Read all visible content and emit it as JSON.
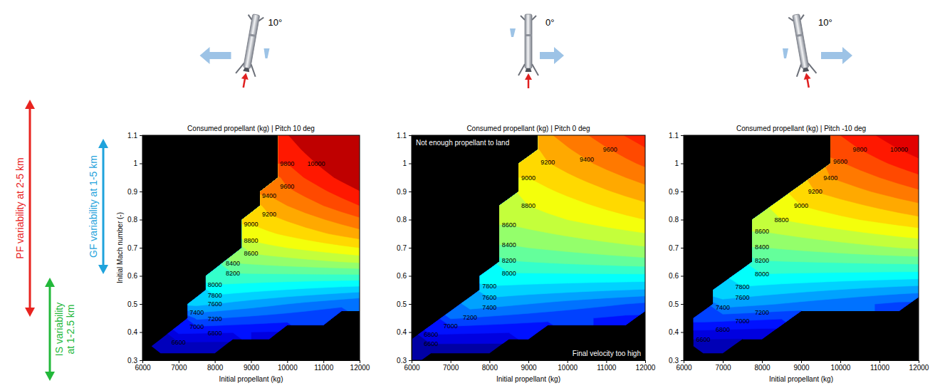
{
  "chart_data": [
    {
      "type": "contour",
      "title": "Consumed propellant (kg) | Pitch 10 deg",
      "icon_text": "10°",
      "x_label": "Initial propellant (kg)",
      "y_label": "Initial Mach number (-)",
      "xlim": [
        6000,
        12000
      ],
      "ylim": [
        0.3,
        1.1
      ],
      "xticks": [
        6000,
        7000,
        8000,
        9000,
        10000,
        11000,
        12000
      ],
      "yticks": [
        0.3,
        0.4,
        0.5,
        0.6,
        0.7,
        0.8,
        0.9,
        1,
        1.1
      ],
      "x": [
        6000,
        6500,
        7000,
        7500,
        8000,
        8500,
        9000,
        9500,
        10000,
        10500,
        11000,
        11500,
        12000
      ],
      "y": [
        0.3,
        0.35,
        0.4,
        0.45,
        0.5,
        0.55,
        0.6,
        0.65,
        0.7,
        0.75,
        0.8,
        0.85,
        0.9,
        0.95,
        1,
        1.05,
        1.1
      ],
      "z": [
        [
          null,
          null,
          null,
          null,
          null,
          null,
          null,
          null,
          null,
          null,
          null,
          null,
          null
        ],
        [
          null,
          6500,
          6500,
          6500,
          6500,
          null,
          null,
          null,
          null,
          null,
          null,
          null,
          null
        ],
        [
          null,
          null,
          6840,
          6830,
          6820,
          6810,
          6800,
          6790,
          null,
          null,
          null,
          null,
          null
        ],
        [
          null,
          null,
          null,
          7240,
          7210,
          7180,
          7150,
          7120,
          7090,
          7060,
          7030,
          null,
          null
        ],
        [
          null,
          null,
          null,
          7650,
          7600,
          7550,
          7500,
          7450,
          7400,
          7350,
          7300,
          7250,
          7200
        ],
        [
          null,
          null,
          null,
          null,
          7910,
          7880,
          7850,
          7820,
          7790,
          7760,
          7730,
          7700,
          7670
        ],
        [
          null,
          null,
          null,
          null,
          8150,
          8150,
          8150,
          8150,
          8150,
          8150,
          8150,
          8150,
          8150
        ],
        [
          null,
          null,
          null,
          null,
          null,
          8420,
          8450,
          8480,
          8510,
          8540,
          8570,
          8600,
          8630
        ],
        [
          null,
          null,
          null,
          null,
          null,
          null,
          8700,
          8750,
          8800,
          8850,
          8900,
          8950,
          9000
        ],
        [
          null,
          null,
          null,
          null,
          null,
          null,
          8900,
          8970,
          9040,
          9110,
          9180,
          9250,
          9320
        ],
        [
          null,
          null,
          null,
          null,
          null,
          null,
          9050,
          9135,
          9220,
          9305,
          9390,
          9475,
          9560
        ],
        [
          null,
          null,
          null,
          null,
          null,
          null,
          null,
          9300,
          9400,
          9500,
          9600,
          9700,
          9800
        ],
        [
          null,
          null,
          null,
          null,
          null,
          null,
          null,
          9440,
          9550,
          9660,
          9770,
          9880,
          9990
        ],
        [
          null,
          null,
          null,
          null,
          null,
          null,
          null,
          null,
          9690,
          9810,
          9930,
          10050,
          10170
        ],
        [
          null,
          null,
          null,
          null,
          null,
          null,
          null,
          null,
          9800,
          9925,
          10050,
          10175,
          10300
        ],
        [
          null,
          null,
          null,
          null,
          null,
          null,
          null,
          null,
          9900,
          10030,
          10160,
          10290,
          10420
        ],
        [
          null,
          null,
          null,
          null,
          null,
          null,
          null,
          null,
          9990,
          10125,
          10260,
          10395,
          10530
        ]
      ],
      "levels": [
        6600,
        6800,
        7000,
        7200,
        7400,
        7600,
        7800,
        8000,
        8200,
        8400,
        8600,
        8800,
        9000,
        9200,
        9400,
        9600,
        9800,
        10000
      ],
      "data_labels": true
    },
    {
      "type": "contour",
      "title": "Consumed propellant (kg) | Pitch 0 deg",
      "icon_text": "0°",
      "x_label": "Initial propellant (kg)",
      "xlim": [
        6000,
        12000
      ],
      "ylim": [
        0.3,
        1.1
      ],
      "xticks": [
        6000,
        7000,
        8000,
        9000,
        10000,
        11000,
        12000
      ],
      "yticks": [
        0.3,
        0.4,
        0.5,
        0.6,
        0.7,
        0.8,
        0.9,
        1,
        1.1
      ],
      "x": [
        6000,
        6500,
        7000,
        7500,
        8000,
        8500,
        9000,
        9500,
        10000,
        10500,
        11000,
        11500,
        12000
      ],
      "y": [
        0.3,
        0.35,
        0.4,
        0.45,
        0.5,
        0.55,
        0.6,
        0.65,
        0.7,
        0.75,
        0.8,
        0.85,
        0.9,
        0.95,
        1,
        1.05,
        1.1
      ],
      "z": [
        [
          6300,
          null,
          null,
          null,
          null,
          null,
          null,
          null,
          null,
          null,
          null,
          null,
          null
        ],
        [
          6550,
          6550,
          6550,
          6550,
          6550,
          null,
          null,
          null,
          null,
          null,
          null,
          null,
          null
        ],
        [
          null,
          6850,
          6840,
          6830,
          6820,
          6810,
          6800,
          null,
          null,
          null,
          null,
          null,
          null
        ],
        [
          null,
          null,
          7220,
          7190,
          7160,
          7130,
          7100,
          7070,
          7040,
          7010,
          6980,
          6950,
          null
        ],
        [
          null,
          null,
          null,
          7520,
          7480,
          7440,
          7400,
          7360,
          7320,
          7280,
          7240,
          7200,
          7160
        ],
        [
          null,
          null,
          null,
          null,
          7740,
          7720,
          7700,
          7680,
          7660,
          7640,
          7620,
          7600,
          7580
        ],
        [
          null,
          null,
          null,
          null,
          7950,
          7950,
          7950,
          7950,
          7950,
          7950,
          7950,
          7950,
          7950
        ],
        [
          null,
          null,
          null,
          null,
          null,
          8180,
          8200,
          8220,
          8240,
          8260,
          8280,
          8300,
          8320
        ],
        [
          null,
          null,
          null,
          null,
          null,
          8370,
          8400,
          8430,
          8460,
          8490,
          8520,
          8550,
          8580
        ],
        [
          null,
          null,
          null,
          null,
          null,
          8510,
          8550,
          8590,
          8630,
          8670,
          8710,
          8750,
          8790
        ],
        [
          null,
          null,
          null,
          null,
          null,
          8650,
          8700,
          8750,
          8800,
          8850,
          8900,
          8950,
          9000
        ],
        [
          null,
          null,
          null,
          null,
          null,
          8740,
          8800,
          8860,
          8920,
          8980,
          9040,
          9100,
          9160
        ],
        [
          null,
          null,
          null,
          null,
          null,
          null,
          8900,
          8970,
          9040,
          9110,
          9180,
          9250,
          9320
        ],
        [
          null,
          null,
          null,
          null,
          null,
          null,
          9000,
          9080,
          9160,
          9240,
          9320,
          9400,
          9480
        ],
        [
          null,
          null,
          null,
          null,
          null,
          null,
          9100,
          9190,
          9280,
          9370,
          9460,
          9550,
          9640
        ],
        [
          null,
          null,
          null,
          null,
          null,
          null,
          null,
          9280,
          9380,
          9480,
          9580,
          9680,
          9780
        ],
        [
          null,
          null,
          null,
          null,
          null,
          null,
          null,
          9370,
          9480,
          9590,
          9700,
          9810,
          9920
        ]
      ],
      "levels": [
        6600,
        6800,
        7000,
        7200,
        7400,
        7600,
        7800,
        8000,
        8200,
        8400,
        8600,
        8800,
        9000,
        9200,
        9400,
        9600,
        9800
      ],
      "data_labels": true,
      "annotations": [
        "Not enough propellant to land",
        "Final velocity too high"
      ]
    },
    {
      "type": "contour",
      "title": "Consumed propellant (kg) | Pitch -10 deg",
      "icon_text": "10°",
      "x_label": "Initial propellant (kg)",
      "xlim": [
        6000,
        12000
      ],
      "ylim": [
        0.3,
        1.1
      ],
      "xticks": [
        6000,
        7000,
        8000,
        9000,
        10000,
        11000,
        12000
      ],
      "yticks": [
        0.3,
        0.4,
        0.5,
        0.6,
        0.7,
        0.8,
        0.9,
        1,
        1.1
      ],
      "x": [
        6000,
        6500,
        7000,
        7500,
        8000,
        8500,
        9000,
        9500,
        10000,
        10500,
        11000,
        11500,
        12000
      ],
      "y": [
        0.3,
        0.35,
        0.4,
        0.45,
        0.5,
        0.55,
        0.6,
        0.65,
        0.7,
        0.75,
        0.8,
        0.85,
        0.9,
        0.95,
        1,
        1.05,
        1.1
      ],
      "z": [
        [
          null,
          null,
          null,
          null,
          null,
          null,
          null,
          null,
          null,
          null,
          null,
          null,
          null
        ],
        [
          null,
          6450,
          6450,
          null,
          null,
          null,
          null,
          null,
          null,
          null,
          null,
          null,
          null
        ],
        [
          null,
          6750,
          6740,
          6730,
          6720,
          null,
          null,
          null,
          null,
          null,
          null,
          null,
          null
        ],
        [
          null,
          7100,
          7080,
          7060,
          7040,
          7020,
          null,
          null,
          null,
          null,
          null,
          null,
          null
        ],
        [
          null,
          null,
          7510,
          7470,
          7430,
          7390,
          7350,
          7310,
          7270,
          7230,
          7190,
          7150,
          null
        ],
        [
          null,
          null,
          7770,
          7740,
          7710,
          7680,
          7650,
          7620,
          7590,
          7560,
          7530,
          7500,
          7470
        ],
        [
          null,
          null,
          null,
          7980,
          7970,
          7960,
          7950,
          7940,
          7930,
          7920,
          7910,
          7900,
          7890
        ],
        [
          null,
          null,
          null,
          null,
          8180,
          8190,
          8200,
          8210,
          8220,
          8230,
          8240,
          8250,
          8260
        ],
        [
          null,
          null,
          null,
          null,
          8390,
          8420,
          8450,
          8480,
          8510,
          8540,
          8570,
          8600,
          8630
        ],
        [
          null,
          null,
          null,
          null,
          8570,
          8610,
          8650,
          8690,
          8730,
          8770,
          8810,
          8850,
          8890
        ],
        [
          null,
          null,
          null,
          null,
          8750,
          8800,
          8850,
          8900,
          8950,
          9000,
          9050,
          9100,
          9150
        ],
        [
          null,
          null,
          null,
          null,
          null,
          8940,
          9000,
          9060,
          9120,
          9180,
          9240,
          9300,
          9360
        ],
        [
          null,
          null,
          null,
          null,
          null,
          null,
          9150,
          9220,
          9290,
          9360,
          9430,
          9500,
          9570
        ],
        [
          null,
          null,
          null,
          null,
          null,
          null,
          null,
          9360,
          9440,
          9520,
          9600,
          9680,
          9760
        ],
        [
          null,
          null,
          null,
          null,
          null,
          null,
          null,
          null,
          9580,
          9670,
          9760,
          9850,
          9940
        ],
        [
          null,
          null,
          null,
          null,
          null,
          null,
          null,
          null,
          9700,
          9800,
          9900,
          10000,
          10100
        ],
        [
          null,
          null,
          null,
          null,
          null,
          null,
          null,
          null,
          9800,
          9910,
          10020,
          10130,
          10240
        ]
      ],
      "levels": [
        6600,
        6800,
        7000,
        7200,
        7400,
        7600,
        7800,
        8000,
        8200,
        8400,
        8600,
        8800,
        9000,
        9200,
        9400,
        9600,
        9800,
        10000
      ],
      "data_labels": true
    }
  ],
  "side_annotations": [
    {
      "text": "PF variability at 2-5 km",
      "color": "#e8231f"
    },
    {
      "text": "GF variability at 1-5 km",
      "color": "#1fa3dc"
    },
    {
      "text": "IS variability at 1-2.5 km",
      "color": "#22b83a"
    }
  ]
}
